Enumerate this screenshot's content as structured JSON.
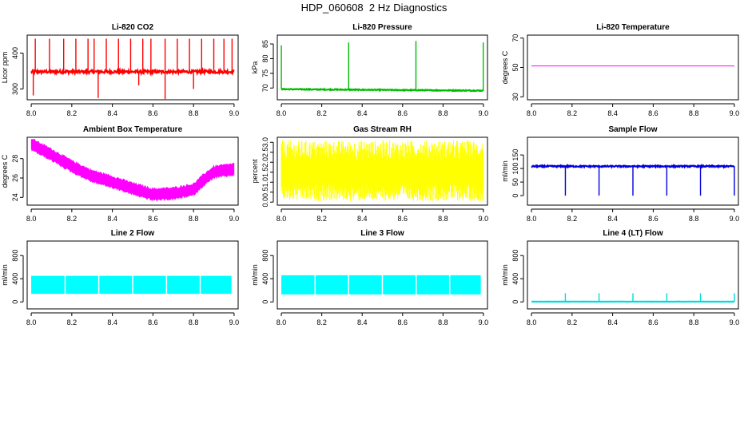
{
  "main_title": "HDP_060608  2 Hz Diagnostics",
  "chart_data": [
    {
      "type": "line",
      "title": "Li-820 CO2",
      "ylabel": "Licor ppm",
      "color": "#ff0000",
      "xlim": [
        7.98,
        9.02
      ],
      "ylim": [
        270,
        450
      ],
      "xticks": [
        8.0,
        8.2,
        8.4,
        8.6,
        8.8,
        9.0
      ],
      "xtick_labels": [
        "8.0",
        "8.2",
        "8.4",
        "8.6",
        "8.8",
        "9.0"
      ],
      "yticks": [
        300,
        400
      ],
      "ytick_labels": [
        "300",
        "400"
      ],
      "pattern": "spikes",
      "base": [
        [
          8.0,
          348
        ],
        [
          9.0,
          348
        ]
      ],
      "noise": 4,
      "spike_x": [
        8.02,
        8.09,
        8.16,
        8.22,
        8.28,
        8.31,
        8.37,
        8.43,
        8.49,
        8.55,
        8.59,
        8.66,
        8.72,
        8.78,
        8.84,
        8.9,
        8.95,
        8.99
      ],
      "spike_y": [
        440,
        440,
        440,
        440,
        440,
        440,
        440,
        440,
        440,
        440,
        440,
        440,
        440,
        440,
        440,
        440,
        440,
        440
      ],
      "dip_x": [
        8.01,
        8.33,
        8.53,
        8.66,
        8.8
      ],
      "dip_y": [
        282,
        275,
        310,
        272,
        300
      ]
    },
    {
      "type": "line",
      "title": "Li-820 Pressure",
      "ylabel": "kPa",
      "color": "#00bb00",
      "xlim": [
        7.98,
        9.02
      ],
      "ylim": [
        66,
        88
      ],
      "xticks": [
        8.0,
        8.2,
        8.4,
        8.6,
        8.8,
        9.0
      ],
      "xtick_labels": [
        "8.0",
        "8.2",
        "8.4",
        "8.6",
        "8.8",
        "9.0"
      ],
      "yticks": [
        70,
        75,
        80,
        85
      ],
      "ytick_labels": [
        "70",
        "75",
        "80",
        "85"
      ],
      "pattern": "spikes",
      "base": [
        [
          8.0,
          69.6
        ],
        [
          9.0,
          69.1
        ]
      ],
      "noise": 0.15,
      "spike_x": [
        8.0,
        8.333,
        8.666,
        8.999
      ],
      "spike_y": [
        84.5,
        85.5,
        86,
        85.5
      ],
      "dip_x": [],
      "dip_y": []
    },
    {
      "type": "line",
      "title": "Li-820 Temperature",
      "ylabel": "degrees C",
      "color": "#ff00ff",
      "xlim": [
        7.98,
        9.02
      ],
      "ylim": [
        28,
        72
      ],
      "xticks": [
        8.0,
        8.2,
        8.4,
        8.6,
        8.8,
        9.0
      ],
      "xtick_labels": [
        "8.0",
        "8.2",
        "8.4",
        "8.6",
        "8.8",
        "9.0"
      ],
      "yticks": [
        30,
        50,
        70
      ],
      "ytick_labels": [
        "30",
        "50",
        "70"
      ],
      "pattern": "flat",
      "base": [
        [
          8.0,
          51
        ],
        [
          9.0,
          51
        ]
      ],
      "noise": 0
    },
    {
      "type": "area",
      "title": "Ambient Box Temperature",
      "ylabel": "degrees C",
      "color": "#ff00ff",
      "xlim": [
        7.98,
        9.02
      ],
      "ylim": [
        23.2,
        30.2
      ],
      "xticks": [
        8.0,
        8.2,
        8.4,
        8.6,
        8.8,
        9.0
      ],
      "xtick_labels": [
        "8.0",
        "8.2",
        "8.4",
        "8.6",
        "8.8",
        "9.0"
      ],
      "yticks": [
        24,
        26,
        28
      ],
      "ytick_labels": [
        "24",
        "26",
        "28"
      ],
      "pattern": "band",
      "base": [
        [
          8.0,
          29.5
        ],
        [
          8.1,
          28.4
        ],
        [
          8.2,
          27.2
        ],
        [
          8.3,
          26.2
        ],
        [
          8.4,
          25.6
        ],
        [
          8.5,
          24.9
        ],
        [
          8.6,
          24.3
        ],
        [
          8.7,
          24.4
        ],
        [
          8.8,
          24.8
        ],
        [
          8.85,
          25.8
        ],
        [
          8.9,
          26.6
        ],
        [
          9.0,
          26.9
        ]
      ],
      "half_width": 0.45
    },
    {
      "type": "area",
      "title": "Gas Stream RH",
      "ylabel": "percent",
      "color": "#ffff00",
      "xlim": [
        7.98,
        9.02
      ],
      "ylim": [
        -0.15,
        3.25
      ],
      "xticks": [
        8.0,
        8.2,
        8.4,
        8.6,
        8.8,
        9.0
      ],
      "xtick_labels": [
        "8.0",
        "8.2",
        "8.4",
        "8.6",
        "8.8",
        "9.0"
      ],
      "yticks": [
        0.0,
        0.5,
        1.0,
        1.5,
        2.0,
        2.5,
        3.0
      ],
      "ytick_labels": [
        "0.0",
        "0.5",
        "1.0",
        "1.5",
        "2.0",
        "2.5",
        "3.0"
      ],
      "pattern": "noise",
      "base": [
        [
          8.0,
          1.5
        ],
        [
          9.0,
          1.5
        ]
      ],
      "half_width": 0.55,
      "spread": [
        0.05,
        3.1
      ]
    },
    {
      "type": "line",
      "title": "Sample Flow",
      "ylabel": "ml/min",
      "color": "#0000dd",
      "xlim": [
        7.98,
        9.02
      ],
      "ylim": [
        -35,
        215
      ],
      "xticks": [
        8.0,
        8.2,
        8.4,
        8.6,
        8.8,
        9.0
      ],
      "xtick_labels": [
        "8.0",
        "8.2",
        "8.4",
        "8.6",
        "8.8",
        "9.0"
      ],
      "yticks": [
        0,
        50,
        100,
        150
      ],
      "ytick_labels": [
        "0",
        "50",
        "100",
        "150"
      ],
      "pattern": "dips",
      "base": [
        [
          8.0,
          108
        ],
        [
          9.0,
          108
        ]
      ],
      "noise": 2.5,
      "dip_x": [
        8.167,
        8.333,
        8.5,
        8.667,
        8.833,
        9.0
      ],
      "dip_y": [
        0,
        0,
        0,
        0,
        0,
        0
      ]
    },
    {
      "type": "area",
      "title": "Line 2 Flow",
      "ylabel": "ml/min",
      "color": "#00ffff",
      "xlim": [
        7.98,
        9.02
      ],
      "ylim": [
        -120,
        1050
      ],
      "xticks": [
        8.0,
        8.2,
        8.4,
        8.6,
        8.8,
        9.0
      ],
      "xtick_labels": [
        "8.0",
        "8.2",
        "8.4",
        "8.6",
        "8.8",
        "9.0"
      ],
      "yticks": [
        0,
        400,
        800
      ],
      "ytick_labels": [
        "0",
        "400",
        "800"
      ],
      "pattern": "blocks",
      "low": 140,
      "high": 440,
      "gaps": [
        8.167,
        8.333,
        8.5,
        8.667,
        8.833
      ],
      "xstart": 8.0,
      "xend": 8.99
    },
    {
      "type": "area",
      "title": "Line 3 Flow",
      "ylabel": "ml/min",
      "color": "#00ffff",
      "xlim": [
        7.98,
        9.02
      ],
      "ylim": [
        -120,
        1050
      ],
      "xticks": [
        8.0,
        8.2,
        8.4,
        8.6,
        8.8,
        9.0
      ],
      "xtick_labels": [
        "8.0",
        "8.2",
        "8.4",
        "8.6",
        "8.8",
        "9.0"
      ],
      "yticks": [
        0,
        400,
        800
      ],
      "ytick_labels": [
        "0",
        "400",
        "800"
      ],
      "pattern": "blocks",
      "low": 130,
      "high": 450,
      "gaps": [
        8.167,
        8.333,
        8.5,
        8.667,
        8.833
      ],
      "xstart": 8.0,
      "xend": 8.99
    },
    {
      "type": "line",
      "title": "Line 4 (LT) Flow",
      "ylabel": "ml/min",
      "color": "#00dddd",
      "xlim": [
        7.98,
        9.02
      ],
      "ylim": [
        -120,
        1050
      ],
      "xticks": [
        8.0,
        8.2,
        8.4,
        8.6,
        8.8,
        9.0
      ],
      "xtick_labels": [
        "8.0",
        "8.2",
        "8.4",
        "8.6",
        "8.8",
        "9.0"
      ],
      "yticks": [
        0,
        400,
        800
      ],
      "ytick_labels": [
        "0",
        "400",
        "800"
      ],
      "pattern": "spikes",
      "base": [
        [
          8.0,
          5
        ],
        [
          9.0,
          5
        ]
      ],
      "noise": 2,
      "spike_x": [
        8.167,
        8.333,
        8.5,
        8.667,
        8.833,
        9.0
      ],
      "spike_y": [
        150,
        150,
        150,
        150,
        150,
        150
      ],
      "dip_x": [],
      "dip_y": []
    }
  ]
}
